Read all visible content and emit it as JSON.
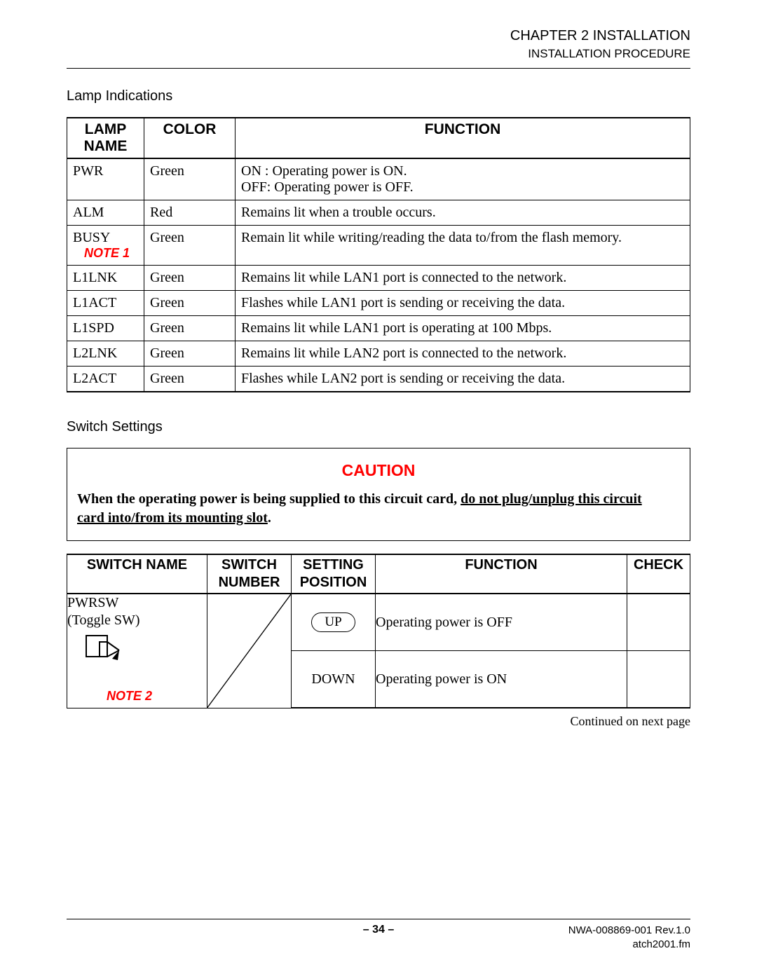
{
  "header": {
    "chapter": "CHAPTER 2  INSTALLATION",
    "subtitle": "INSTALLATION PROCEDURE"
  },
  "section_lamp_label": "Lamp Indications",
  "lamp_table": {
    "columns": {
      "name": "LAMP NAME",
      "color": "COLOR",
      "function": "FUNCTION"
    },
    "rows": [
      {
        "name": "PWR",
        "note": "",
        "color": "Green",
        "function": "ON  : Operating power is ON.\nOFF: Operating power is OFF."
      },
      {
        "name": "ALM",
        "note": "",
        "color": "Red",
        "function": "Remains lit when a trouble occurs."
      },
      {
        "name": "BUSY",
        "note": "NOTE 1",
        "color": "Green",
        "function": "Remain lit while writing/reading the data to/from the flash memory."
      },
      {
        "name": "L1LNK",
        "note": "",
        "color": "Green",
        "function": "Remains lit while LAN1 port is connected to the network."
      },
      {
        "name": "L1ACT",
        "note": "",
        "color": "Green",
        "function": "Flashes while LAN1 port is sending or receiving the data."
      },
      {
        "name": "L1SPD",
        "note": "",
        "color": "Green",
        "function": "Remains lit while LAN1 port is operating at 100 Mbps."
      },
      {
        "name": "L2LNK",
        "note": "",
        "color": "Green",
        "function": "Remains lit while LAN2 port is connected to the network."
      },
      {
        "name": "L2ACT",
        "note": "",
        "color": "Green",
        "function": "Flashes while LAN2 port is sending or receiving the data."
      }
    ]
  },
  "section_switch_label": "Switch Settings",
  "caution": {
    "title": "CAUTION",
    "pre": "When the operating power is being supplied to this circuit card, ",
    "ul1": "do not plug/unplug this circuit",
    "ul2": "card into/from its mounting slot",
    "post": "."
  },
  "switch_table": {
    "columns": {
      "name": "SWITCH NAME",
      "number": "SWITCH NUMBER",
      "position": "SETTING POSITION",
      "function": "FUNCTION",
      "check": "CHECK"
    },
    "name_cell": {
      "line1": "PWRSW",
      "line2": "(Toggle SW)",
      "note": "NOTE 2"
    },
    "rows": [
      {
        "position": "UP",
        "pill": true,
        "function": "Operating power is OFF"
      },
      {
        "position": "DOWN",
        "pill": false,
        "function": "Operating power is ON"
      }
    ]
  },
  "continued": "Continued on next page",
  "footer": {
    "page": "– 34 –",
    "doc": "NWA-008869-001 Rev.1.0",
    "file": "atch2001.fm"
  },
  "colors": {
    "text": "#000000",
    "accent_red": "#ff0000",
    "background": "#ffffff",
    "border": "#000000"
  }
}
